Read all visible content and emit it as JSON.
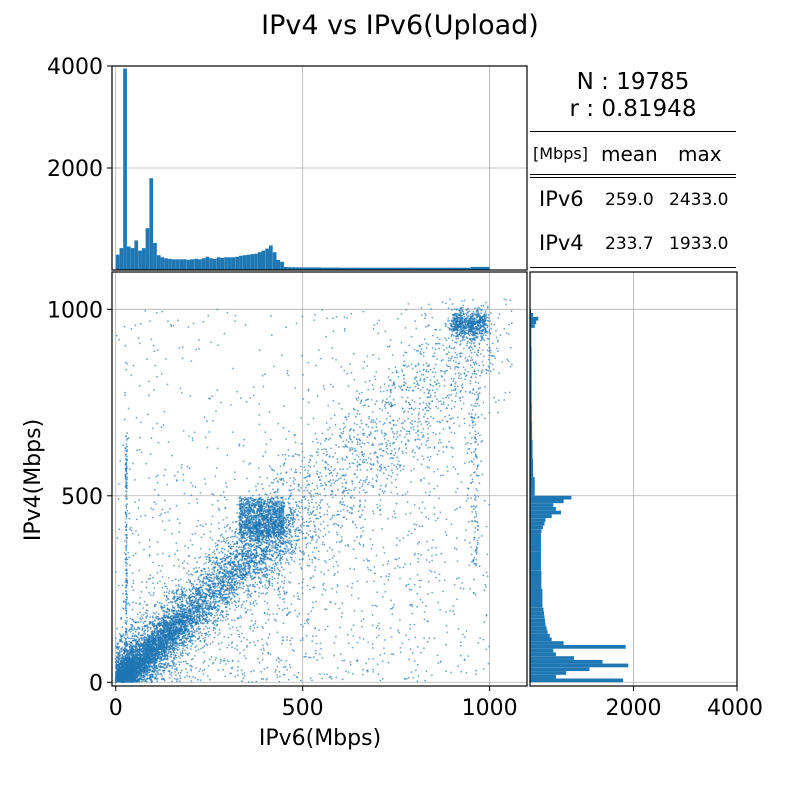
{
  "title": "IPv4 vs IPv6(Upload)",
  "stats": {
    "n_text": "N : 19785",
    "r_text": "r : 0.81948",
    "unit": "[Mbps]",
    "col_mean": "mean",
    "col_max": "max",
    "rows": [
      {
        "label": "IPv6",
        "mean": "259.0",
        "max": "2433.0"
      },
      {
        "label": "IPv4",
        "mean": "233.7",
        "max": "1933.0"
      }
    ]
  },
  "colors": {
    "series": "#1f77b4",
    "grid": "#b0b0b0"
  },
  "chart_data": [
    {
      "type": "scatter",
      "xlabel": "IPv6(Mbps)",
      "ylabel": "IPv4(Mbps)",
      "xlim": [
        -10,
        1100
      ],
      "ylim": [
        -10,
        1100
      ],
      "xticks": [
        0,
        500,
        1000
      ],
      "yticks": [
        0,
        500,
        1000
      ],
      "grid": true,
      "point_count_shown": 19785,
      "clusters_description_free": true,
      "density_regions": [
        {
          "x": [
            0,
            450
          ],
          "y": [
            0,
            450
          ],
          "trend": "diagonal y≈x, densest near origin"
        },
        {
          "x": [
            320,
            450
          ],
          "y": [
            400,
            500
          ],
          "dense_cluster": true
        },
        {
          "x": [
            900,
            1000
          ],
          "y": [
            920,
            1000
          ],
          "dense_cluster": true
        },
        {
          "x": [
            25,
            35
          ],
          "y": [
            300,
            660
          ],
          "vertical_streak": true
        }
      ]
    },
    {
      "type": "bar",
      "orientation": "vertical",
      "variable": "IPv6(Mbps)",
      "xlim": [
        -10,
        1100
      ],
      "ylim": [
        0,
        4000
      ],
      "yticks": [
        2000,
        4000
      ],
      "grid": true,
      "bin_width": 10,
      "bins_start": [
        0,
        10,
        20,
        30,
        40,
        50,
        60,
        70,
        80,
        90,
        100,
        110,
        120,
        130,
        140,
        150,
        160,
        170,
        180,
        190,
        200,
        210,
        220,
        230,
        240,
        250,
        260,
        270,
        280,
        290,
        300,
        310,
        320,
        330,
        340,
        350,
        360,
        370,
        380,
        390,
        400,
        410,
        420,
        430,
        440,
        450,
        460,
        470,
        480,
        490,
        500,
        550,
        600,
        650,
        700,
        750,
        800,
        850,
        900,
        950
      ],
      "values": [
        300,
        430,
        3950,
        460,
        430,
        580,
        380,
        430,
        820,
        1800,
        530,
        290,
        250,
        230,
        220,
        210,
        210,
        210,
        210,
        200,
        210,
        220,
        210,
        230,
        260,
        230,
        220,
        250,
        240,
        250,
        250,
        250,
        260,
        280,
        290,
        300,
        310,
        320,
        350,
        380,
        420,
        480,
        350,
        200,
        160,
        60,
        55,
        55,
        55,
        50,
        50,
        48,
        45,
        45,
        45,
        45,
        45,
        45,
        45,
        60
      ]
    },
    {
      "type": "bar",
      "orientation": "horizontal",
      "variable": "IPv4(Mbps)",
      "ylim": [
        -10,
        1100
      ],
      "xlim": [
        0,
        4000
      ],
      "xticks": [
        2000,
        4000
      ],
      "grid": true,
      "bin_width": 10,
      "bins_start": [
        0,
        10,
        20,
        30,
        40,
        50,
        60,
        70,
        80,
        90,
        100,
        110,
        120,
        130,
        140,
        150,
        160,
        170,
        180,
        190,
        200,
        250,
        300,
        350,
        400,
        410,
        420,
        430,
        440,
        450,
        460,
        470,
        480,
        490,
        500,
        550,
        600,
        650,
        700,
        750,
        800,
        850,
        900,
        950,
        960,
        970,
        980,
        990
      ],
      "values": [
        1800,
        500,
        700,
        1150,
        1900,
        1400,
        850,
        500,
        450,
        1850,
        650,
        420,
        380,
        340,
        320,
        300,
        290,
        280,
        270,
        260,
        240,
        220,
        210,
        210,
        220,
        250,
        280,
        300,
        420,
        600,
        500,
        450,
        650,
        800,
        90,
        60,
        50,
        40,
        35,
        30,
        30,
        30,
        25,
        90,
        120,
        160,
        60,
        20
      ]
    }
  ]
}
